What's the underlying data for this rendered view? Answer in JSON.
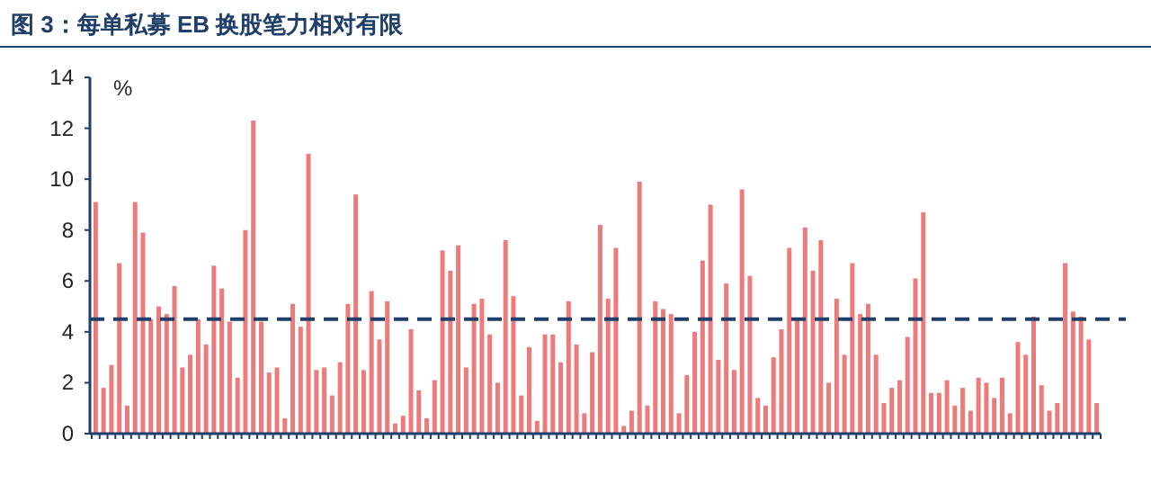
{
  "chart_data": {
    "type": "bar",
    "title": "图 3：每单私募 EB 换股笔力相对有限",
    "ylabel": "%",
    "categories": [
      null,
      null,
      null,
      null,
      null,
      null,
      null,
      null,
      null,
      null,
      null,
      null,
      null,
      null,
      null,
      null,
      null,
      null,
      null,
      null,
      null,
      null,
      null,
      null,
      null,
      null,
      null,
      null,
      null,
      null,
      null,
      null,
      null,
      null,
      null,
      null,
      null,
      null,
      null,
      null,
      null,
      null,
      null,
      null,
      null,
      null,
      null,
      null,
      null,
      null,
      null,
      null,
      null,
      null,
      null,
      null,
      null,
      null,
      null,
      null,
      null,
      null,
      null,
      null,
      null,
      null,
      null,
      null,
      null,
      null,
      null,
      null,
      null,
      null,
      null,
      null,
      null,
      null,
      null,
      null,
      null,
      null,
      null,
      null,
      null,
      null,
      null,
      null,
      null,
      null,
      null,
      null,
      null,
      null,
      null,
      null,
      null,
      null,
      null,
      null,
      null,
      null,
      null,
      null,
      null,
      null,
      null,
      null,
      null,
      null,
      null,
      null,
      null,
      null,
      null,
      null,
      null,
      null,
      null,
      null,
      null,
      null,
      null,
      null,
      null,
      null,
      null,
      null
    ],
    "values": [
      9.1,
      1.8,
      2.7,
      6.7,
      1.1,
      9.1,
      7.9,
      4.5,
      5.0,
      4.7,
      5.8,
      2.6,
      3.1,
      4.5,
      3.5,
      6.6,
      5.7,
      4.4,
      2.2,
      8.0,
      12.3,
      4.4,
      2.4,
      2.6,
      0.6,
      5.1,
      4.2,
      11.0,
      2.5,
      2.6,
      1.5,
      2.8,
      5.1,
      9.4,
      2.5,
      5.6,
      3.7,
      5.2,
      0.4,
      0.7,
      4.1,
      1.7,
      0.6,
      2.1,
      7.2,
      6.4,
      7.4,
      2.6,
      5.1,
      5.3,
      3.9,
      2.0,
      7.6,
      5.4,
      1.5,
      3.4,
      0.5,
      3.9,
      3.9,
      2.8,
      5.2,
      3.5,
      0.8,
      3.2,
      8.2,
      5.3,
      7.3,
      0.3,
      0.9,
      9.9,
      1.1,
      5.2,
      4.9,
      4.7,
      0.8,
      2.3,
      4.0,
      6.8,
      9.0,
      2.9,
      5.9,
      2.5,
      9.6,
      6.2,
      1.4,
      1.1,
      3.0,
      4.1,
      7.3,
      4.5,
      8.1,
      6.4,
      7.6,
      2.0,
      5.3,
      3.1,
      6.7,
      4.7,
      5.1,
      3.1,
      1.2,
      1.8,
      2.1,
      3.8,
      6.1,
      8.7,
      1.6,
      1.6,
      2.1,
      1.1,
      1.8,
      0.9,
      2.2,
      2.0,
      1.4,
      2.2,
      0.8,
      3.6,
      3.1,
      4.6,
      1.9,
      0.9,
      1.2,
      6.7,
      4.8,
      4.6,
      3.7,
      1.2
    ],
    "color": "#ee7b7b",
    "ylim": [
      0,
      14
    ],
    "yticks": [
      0,
      2,
      4,
      6,
      8,
      10,
      12,
      14
    ],
    "ref_lines": [
      {
        "axis": "y",
        "value": 4.5,
        "label": null,
        "color": "#1f3f6a",
        "line_style": "dashed"
      }
    ],
    "grid": false
  }
}
